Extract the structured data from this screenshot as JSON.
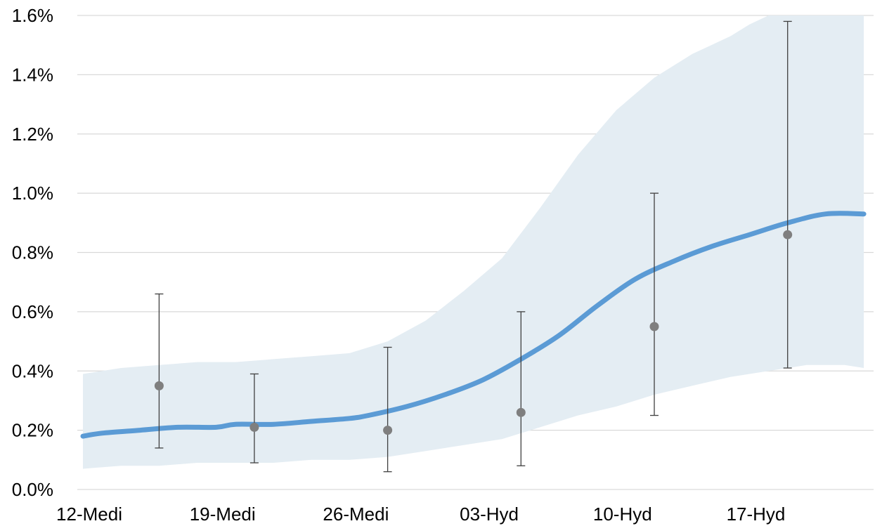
{
  "chart_data": {
    "type": "line",
    "title": "",
    "xlabel": "",
    "ylabel": "",
    "x_range_days": [
      0,
      41
    ],
    "x_ticks": [
      {
        "day": 0,
        "label": "12-Medi"
      },
      {
        "day": 7,
        "label": "19-Medi"
      },
      {
        "day": 14,
        "label": "26-Medi"
      },
      {
        "day": 21,
        "label": "03-Hyd"
      },
      {
        "day": 28,
        "label": "10-Hyd"
      },
      {
        "day": 35,
        "label": "17-Hyd"
      }
    ],
    "ylim": [
      0,
      1.6
    ],
    "y_ticks": [
      {
        "value": 0.0,
        "label": "0.0%"
      },
      {
        "value": 0.2,
        "label": "0.2%"
      },
      {
        "value": 0.4,
        "label": "0.4%"
      },
      {
        "value": 0.6,
        "label": "0.6%"
      },
      {
        "value": 0.8,
        "label": "0.8%"
      },
      {
        "value": 1.0,
        "label": "1.0%"
      },
      {
        "value": 1.2,
        "label": "1.2%"
      },
      {
        "value": 1.4,
        "label": "1.4%"
      },
      {
        "value": 1.6,
        "label": "1.6%"
      }
    ],
    "grid": true,
    "legend": "none",
    "colors": {
      "trend_line": "#5b9bd5",
      "band": "#e4edf3",
      "points": "#7f7f7f",
      "error_bars": "#404040",
      "grid": "#d9d9d9"
    },
    "trend": {
      "x": [
        0,
        1,
        3,
        5,
        7,
        8,
        10,
        12,
        14,
        15,
        17,
        19,
        21,
        23,
        25,
        27,
        29,
        31,
        33,
        35,
        37,
        39,
        41
      ],
      "y": [
        0.18,
        0.19,
        0.2,
        0.21,
        0.21,
        0.22,
        0.22,
        0.23,
        0.24,
        0.25,
        0.28,
        0.32,
        0.37,
        0.44,
        0.52,
        0.62,
        0.71,
        0.77,
        0.82,
        0.86,
        0.9,
        0.93,
        0.93
      ]
    },
    "band": {
      "x": [
        0,
        2,
        4,
        6,
        8,
        10,
        12,
        14,
        16,
        18,
        20,
        22,
        24,
        26,
        28,
        30,
        32,
        34,
        35,
        36,
        38,
        40,
        41
      ],
      "lower": [
        0.07,
        0.08,
        0.08,
        0.09,
        0.09,
        0.09,
        0.1,
        0.1,
        0.11,
        0.13,
        0.15,
        0.17,
        0.21,
        0.25,
        0.28,
        0.32,
        0.35,
        0.38,
        0.39,
        0.4,
        0.42,
        0.42,
        0.41
      ],
      "upper": [
        0.39,
        0.41,
        0.42,
        0.43,
        0.43,
        0.44,
        0.45,
        0.46,
        0.5,
        0.57,
        0.67,
        0.78,
        0.95,
        1.13,
        1.28,
        1.39,
        1.47,
        1.53,
        1.57,
        1.6,
        1.6,
        1.6,
        1.6
      ]
    },
    "points": [
      {
        "x": 4,
        "y": 0.35,
        "low": 0.14,
        "high": 0.66
      },
      {
        "x": 9,
        "y": 0.21,
        "low": 0.09,
        "high": 0.39
      },
      {
        "x": 16,
        "y": 0.2,
        "low": 0.06,
        "high": 0.48
      },
      {
        "x": 23,
        "y": 0.26,
        "low": 0.08,
        "high": 0.6
      },
      {
        "x": 30,
        "y": 0.55,
        "low": 0.25,
        "high": 1.0
      },
      {
        "x": 37,
        "y": 0.86,
        "low": 0.41,
        "high": 1.58
      }
    ]
  }
}
